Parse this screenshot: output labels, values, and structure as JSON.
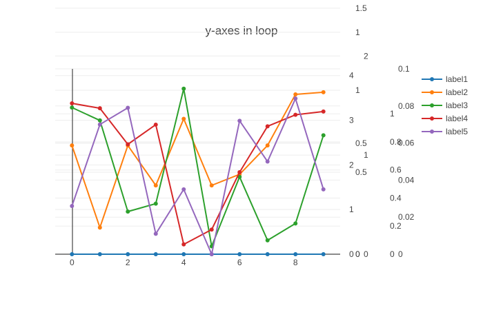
{
  "chart_data": {
    "type": "line",
    "title": "y-axes in loop",
    "x": [
      0,
      1,
      2,
      3,
      4,
      5,
      6,
      7,
      8,
      9
    ],
    "x_ticks": [
      0,
      2,
      4,
      6,
      8
    ],
    "xlim": [
      -0.6,
      9.6
    ],
    "legend_position": "top-right",
    "grid": true,
    "series": [
      {
        "name": "label1",
        "color": "#1f77b4",
        "axis": "y",
        "values": [
          0,
          0,
          0,
          0,
          0,
          0,
          0,
          0,
          0,
          0
        ]
      },
      {
        "name": "label2",
        "color": "#ff7f0e",
        "axis": "y2",
        "values": [
          0.49,
          0.12,
          0.49,
          0.31,
          0.61,
          0.31,
          0.36,
          0.49,
          0.72,
          0.73
        ]
      },
      {
        "name": "label3",
        "color": "#2ca02c",
        "axis": "y3",
        "values": [
          1.48,
          1.35,
          0.43,
          0.51,
          1.67,
          0.08,
          0.78,
          0.14,
          0.31,
          1.2
        ]
      },
      {
        "name": "label4",
        "color": "#d62728",
        "axis": "y4",
        "values": [
          0.92,
          0.89,
          0.67,
          0.79,
          0.06,
          0.15,
          0.5,
          0.78,
          0.85,
          0.87
        ]
      },
      {
        "name": "label5",
        "color": "#9467bd",
        "axis": "y5",
        "values": [
          0.026,
          0.07,
          0.079,
          0.011,
          0.035,
          0.0,
          0.072,
          0.05,
          0.084,
          0.035
        ]
      }
    ],
    "y_axes": [
      {
        "id": "y",
        "range": [
          0,
          4.15
        ],
        "ticks": [
          0,
          1,
          2,
          3,
          4
        ],
        "tick_labels": [
          "0",
          "1",
          "2",
          "3",
          "4"
        ]
      },
      {
        "id": "y2",
        "range": [
          0,
          0.835
        ],
        "ticks": [
          0,
          0.5,
          1,
          1.5,
          2,
          2.5
        ],
        "tick_labels": [
          "0",
          "0.5",
          "1",
          "1.5",
          "2",
          "2.5"
        ]
      },
      {
        "id": "y3",
        "range": [
          0,
          1.87
        ],
        "ticks": [
          0,
          1,
          2,
          3
        ],
        "tick_labels": [
          "0",
          "1",
          "2",
          "3"
        ]
      },
      {
        "id": "y4",
        "range": [
          0,
          1.13
        ],
        "ticks": [
          0,
          0.5,
          1,
          1.5,
          2
        ],
        "tick_labels": [
          "0",
          "0.5",
          "1",
          "1.5",
          "2"
        ]
      },
      {
        "id": "y5",
        "range": [
          0,
          0.1
        ],
        "ticks": [
          0,
          0.02,
          0.04,
          0.06,
          0.08,
          0.1
        ],
        "tick_labels": [
          "0",
          "0.02",
          "0.04",
          "0.06",
          "0.08",
          "0.1"
        ]
      },
      {
        "id": "y6",
        "range": [
          0,
          1.32
        ],
        "ticks": [
          0,
          0.2,
          0.4,
          0.6,
          0.8,
          1
        ],
        "tick_labels": [
          "0",
          "0.2",
          "0.4",
          "0.6",
          "0.8",
          "1"
        ]
      }
    ]
  }
}
